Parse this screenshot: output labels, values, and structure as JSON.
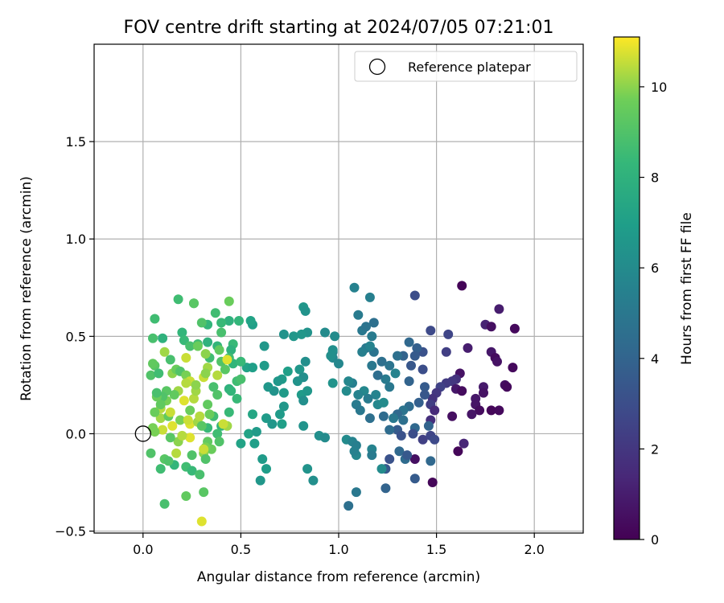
{
  "chart_data": {
    "type": "scatter",
    "title": "FOV centre drift starting at 2024/07/05 07:21:01",
    "xlabel": "Angular distance from reference (arcmin)",
    "ylabel": "Rotation from reference (arcmin)",
    "xlim": [
      -0.25,
      2.25
    ],
    "ylim": [
      -0.51,
      2.0
    ],
    "xticks": [
      {
        "value": 0.0,
        "label": "0.0"
      },
      {
        "value": 0.5,
        "label": "0.5"
      },
      {
        "value": 1.0,
        "label": "1.0"
      },
      {
        "value": 1.5,
        "label": "1.5"
      },
      {
        "value": 2.0,
        "label": "2.0"
      }
    ],
    "yticks": [
      {
        "value": -0.5,
        "label": "−0.5"
      },
      {
        "value": 0.0,
        "label": "0.0"
      },
      {
        "value": 0.5,
        "label": "0.5"
      },
      {
        "value": 1.0,
        "label": "1.0"
      },
      {
        "value": 1.5,
        "label": "1.5"
      }
    ],
    "grid": true,
    "legend": {
      "position": "top-right",
      "entries": [
        {
          "label": "Reference platepar",
          "marker": "open-circle"
        }
      ]
    },
    "reference_point": {
      "x": 0.0,
      "y": 0.0
    },
    "colorbar": {
      "label": "Hours from first FF file",
      "colormap": "viridis",
      "range": [
        0,
        11.1
      ],
      "ticks": [
        {
          "value": 0,
          "label": "0"
        },
        {
          "value": 2,
          "label": "2"
        },
        {
          "value": 4,
          "label": "4"
        },
        {
          "value": 6,
          "label": "6"
        },
        {
          "value": 8,
          "label": "8"
        },
        {
          "value": 10,
          "label": "10"
        }
      ]
    },
    "points": [
      [
        1.63,
        0.76,
        0.1
      ],
      [
        1.82,
        0.64,
        1.0
      ],
      [
        1.9,
        0.54,
        0.3
      ],
      [
        1.75,
        0.56,
        1.2
      ],
      [
        1.78,
        0.55,
        0.5
      ],
      [
        1.78,
        0.42,
        0.8
      ],
      [
        1.8,
        0.39,
        0.4
      ],
      [
        1.81,
        0.37,
        0.6
      ],
      [
        1.66,
        0.44,
        1.0
      ],
      [
        1.89,
        0.34,
        0.3
      ],
      [
        1.62,
        0.31,
        0.6
      ],
      [
        1.6,
        0.28,
        1.8
      ],
      [
        1.58,
        0.27,
        2.0
      ],
      [
        1.55,
        0.26,
        2.2
      ],
      [
        1.52,
        0.24,
        2.5
      ],
      [
        1.5,
        0.21,
        2.0
      ],
      [
        1.48,
        0.18,
        1.8
      ],
      [
        1.47,
        0.15,
        2.3
      ],
      [
        1.49,
        0.12,
        1.5
      ],
      [
        1.47,
        0.07,
        1.7
      ],
      [
        1.85,
        0.25,
        0.5
      ],
      [
        1.86,
        0.24,
        0.3
      ],
      [
        1.74,
        0.24,
        0.9
      ],
      [
        1.74,
        0.21,
        0.6
      ],
      [
        1.7,
        0.18,
        0.8
      ],
      [
        1.7,
        0.15,
        0.7
      ],
      [
        1.72,
        0.12,
        0.4
      ],
      [
        1.78,
        0.12,
        0.2
      ],
      [
        1.82,
        0.12,
        0.3
      ],
      [
        1.68,
        0.1,
        0.7
      ],
      [
        1.58,
        0.09,
        0.5
      ],
      [
        1.6,
        0.23,
        0.8
      ],
      [
        1.63,
        0.22,
        0.4
      ],
      [
        1.61,
        -0.09,
        0.2
      ],
      [
        1.64,
        -0.05,
        1.3
      ],
      [
        1.48,
        -0.25,
        0.2
      ],
      [
        1.39,
        -0.13,
        0.5
      ],
      [
        1.47,
        0.53,
        2.8
      ],
      [
        1.56,
        0.51,
        2.6
      ],
      [
        1.55,
        0.42,
        2.3
      ],
      [
        1.39,
        0.71,
        3.0
      ],
      [
        1.43,
        0.42,
        3.2
      ],
      [
        1.4,
        0.44,
        3.8
      ],
      [
        1.36,
        0.47,
        4.2
      ],
      [
        1.39,
        0.4,
        3.6
      ],
      [
        1.33,
        0.4,
        4.0
      ],
      [
        1.3,
        0.4,
        4.6
      ],
      [
        1.37,
        0.35,
        3.4
      ],
      [
        1.43,
        0.33,
        3.0
      ],
      [
        1.36,
        0.27,
        4.0
      ],
      [
        1.44,
        0.24,
        3.6
      ],
      [
        1.44,
        0.2,
        3.4
      ],
      [
        1.41,
        0.16,
        3.8
      ],
      [
        1.36,
        0.14,
        4.4
      ],
      [
        1.33,
        0.12,
        4.8
      ],
      [
        1.3,
        0.1,
        4.2
      ],
      [
        1.33,
        0.07,
        4.6
      ],
      [
        1.28,
        0.08,
        5.0
      ],
      [
        1.23,
        0.09,
        4.4
      ],
      [
        1.46,
        0.04,
        4.0
      ],
      [
        1.39,
        0.03,
        4.2
      ],
      [
        1.3,
        0.02,
        3.6
      ],
      [
        1.26,
        0.02,
        4.4
      ],
      [
        1.32,
        -0.01,
        3.2
      ],
      [
        1.38,
        0.0,
        3.0
      ],
      [
        1.43,
        -0.03,
        2.4
      ],
      [
        1.47,
        -0.01,
        2.6
      ],
      [
        1.49,
        -0.03,
        2.8
      ],
      [
        1.47,
        -0.14,
        4.2
      ],
      [
        1.39,
        -0.23,
        3.6
      ],
      [
        1.31,
        -0.09,
        4.2
      ],
      [
        1.34,
        -0.13,
        4.4
      ],
      [
        1.26,
        -0.13,
        3.2
      ],
      [
        1.24,
        -0.28,
        4.0
      ],
      [
        1.35,
        -0.11,
        3.5
      ],
      [
        1.24,
        -0.18,
        3.5
      ],
      [
        1.08,
        0.75,
        5.5
      ],
      [
        1.1,
        0.61,
        5.2
      ],
      [
        1.16,
        0.7,
        5.4
      ],
      [
        1.18,
        0.57,
        4.6
      ],
      [
        1.12,
        0.53,
        5.0
      ],
      [
        1.14,
        0.55,
        4.8
      ],
      [
        1.17,
        0.5,
        5.2
      ],
      [
        1.14,
        0.44,
        5.0
      ],
      [
        1.12,
        0.42,
        5.4
      ],
      [
        1.18,
        0.42,
        4.8
      ],
      [
        1.16,
        0.45,
        5.6
      ],
      [
        1.17,
        0.35,
        5.0
      ],
      [
        1.22,
        0.37,
        4.6
      ],
      [
        1.26,
        0.35,
        4.8
      ],
      [
        1.24,
        0.28,
        5.2
      ],
      [
        1.26,
        0.24,
        5.0
      ],
      [
        1.29,
        0.31,
        5.6
      ],
      [
        1.2,
        0.3,
        4.5
      ],
      [
        1.19,
        0.2,
        5.6
      ],
      [
        1.13,
        0.22,
        5.8
      ],
      [
        1.1,
        0.2,
        5.6
      ],
      [
        1.07,
        0.26,
        5.4
      ],
      [
        1.05,
        0.27,
        5.8
      ],
      [
        1.15,
        0.18,
        5.2
      ],
      [
        1.09,
        0.15,
        5.2
      ],
      [
        1.11,
        0.12,
        5.0
      ],
      [
        1.2,
        0.15,
        5.8
      ],
      [
        1.23,
        0.16,
        6.0
      ],
      [
        1.16,
        0.08,
        4.6
      ],
      [
        1.04,
        -0.03,
        6.0
      ],
      [
        1.07,
        -0.04,
        5.6
      ],
      [
        1.09,
        -0.06,
        5.4
      ],
      [
        1.09,
        -0.11,
        5.8
      ],
      [
        1.08,
        -0.09,
        5.5
      ],
      [
        1.17,
        -0.08,
        5.6
      ],
      [
        1.17,
        -0.11,
        5.2
      ],
      [
        1.22,
        -0.18,
        6.0
      ],
      [
        1.09,
        -0.3,
        5.0
      ],
      [
        1.05,
        -0.37,
        4.6
      ],
      [
        1.04,
        0.22,
        6.0
      ],
      [
        1.0,
        0.36,
        5.8
      ],
      [
        0.97,
        0.42,
        5.6
      ],
      [
        0.98,
        0.5,
        6.0
      ],
      [
        0.93,
        0.52,
        6.0
      ],
      [
        0.97,
        0.43,
        6.2
      ],
      [
        0.97,
        0.39,
        5.8
      ],
      [
        0.96,
        0.4,
        6.2
      ],
      [
        0.97,
        0.26,
        6.4
      ],
      [
        0.9,
        -0.01,
        6.2
      ],
      [
        0.93,
        -0.02,
        6.0
      ],
      [
        0.84,
        -0.18,
        6.4
      ],
      [
        0.87,
        -0.24,
        6.2
      ],
      [
        0.82,
        0.65,
        6.6
      ],
      [
        0.83,
        0.63,
        6.4
      ],
      [
        0.84,
        0.52,
        6.4
      ],
      [
        0.81,
        0.51,
        6.6
      ],
      [
        0.77,
        0.5,
        6.6
      ],
      [
        0.72,
        0.51,
        6.4
      ],
      [
        0.83,
        0.37,
        6.2
      ],
      [
        0.8,
        0.33,
        6.6
      ],
      [
        0.82,
        0.29,
        6.2
      ],
      [
        0.79,
        0.27,
        6.4
      ],
      [
        0.81,
        0.2,
        6.8
      ],
      [
        0.82,
        0.17,
        6.2
      ],
      [
        0.84,
        0.22,
        6.6
      ],
      [
        0.74,
        0.32,
        7.0
      ],
      [
        0.71,
        0.28,
        6.8
      ],
      [
        0.69,
        0.27,
        6.6
      ],
      [
        0.72,
        0.21,
        6.8
      ],
      [
        0.67,
        0.22,
        6.4
      ],
      [
        0.64,
        0.24,
        6.6
      ],
      [
        0.72,
        0.14,
        6.6
      ],
      [
        0.7,
        0.1,
        6.8
      ],
      [
        0.71,
        0.05,
        7.0
      ],
      [
        0.63,
        0.08,
        6.8
      ],
      [
        0.66,
        0.05,
        6.6
      ],
      [
        0.82,
        0.04,
        6.4
      ],
      [
        0.62,
        0.35,
        6.8
      ],
      [
        0.62,
        0.45,
        6.6
      ],
      [
        0.56,
        0.56,
        7.0
      ],
      [
        0.55,
        0.58,
        7.2
      ],
      [
        0.53,
        0.34,
        7.2
      ],
      [
        0.56,
        0.34,
        7.0
      ],
      [
        0.56,
        0.1,
        7.4
      ],
      [
        0.54,
        0.0,
        7.2
      ],
      [
        0.58,
        0.01,
        6.8
      ],
      [
        0.57,
        -0.05,
        7.0
      ],
      [
        0.5,
        -0.05,
        7.2
      ],
      [
        0.61,
        -0.13,
        6.8
      ],
      [
        0.6,
        -0.24,
        6.6
      ],
      [
        0.63,
        -0.18,
        6.9
      ],
      [
        0.49,
        0.58,
        8.2
      ],
      [
        0.44,
        0.58,
        8.0
      ],
      [
        0.46,
        0.46,
        8.4
      ],
      [
        0.44,
        0.68,
        9.6
      ],
      [
        0.37,
        0.62,
        8.6
      ],
      [
        0.4,
        0.57,
        8.4
      ],
      [
        0.33,
        0.56,
        8.2
      ],
      [
        0.3,
        0.57,
        9.0
      ],
      [
        0.26,
        0.67,
        8.8
      ],
      [
        0.26,
        0.67,
        9.2
      ],
      [
        0.18,
        0.69,
        8.6
      ],
      [
        0.06,
        0.59,
        8.6
      ],
      [
        0.1,
        0.49,
        8.0
      ],
      [
        0.05,
        0.49,
        8.8
      ],
      [
        0.2,
        0.52,
        8.2
      ],
      [
        0.21,
        0.48,
        8.4
      ],
      [
        0.28,
        0.46,
        8.6
      ],
      [
        0.24,
        0.45,
        8.8
      ],
      [
        0.33,
        0.47,
        8.0
      ],
      [
        0.4,
        0.52,
        8.8
      ],
      [
        0.38,
        0.45,
        8.2
      ],
      [
        0.34,
        0.39,
        8.6
      ],
      [
        0.45,
        0.43,
        8.0
      ],
      [
        0.44,
        0.39,
        8.6
      ],
      [
        0.4,
        0.37,
        9.0
      ],
      [
        0.42,
        0.33,
        9.2
      ],
      [
        0.46,
        0.36,
        8.2
      ],
      [
        0.5,
        0.37,
        8.4
      ],
      [
        0.48,
        0.27,
        8.6
      ],
      [
        0.5,
        0.28,
        8.8
      ],
      [
        0.44,
        0.23,
        8.0
      ],
      [
        0.45,
        0.22,
        8.2
      ],
      [
        0.48,
        0.18,
        8.4
      ],
      [
        0.36,
        0.24,
        8.8
      ],
      [
        0.38,
        0.2,
        9.0
      ],
      [
        0.33,
        0.15,
        9.4
      ],
      [
        0.36,
        0.09,
        8.6
      ],
      [
        0.34,
        0.1,
        9.6
      ],
      [
        0.33,
        0.03,
        8.4
      ],
      [
        0.4,
        0.04,
        8.2
      ],
      [
        0.38,
        0.0,
        8.6
      ],
      [
        0.43,
        0.04,
        10.2
      ],
      [
        0.41,
        0.05,
        10.6
      ],
      [
        0.44,
        0.11,
        8.4
      ],
      [
        0.39,
        -0.04,
        9.0
      ],
      [
        0.33,
        -0.04,
        9.4
      ],
      [
        0.35,
        -0.08,
        9.6
      ],
      [
        0.32,
        -0.07,
        9.8
      ],
      [
        0.31,
        -0.1,
        10.0
      ],
      [
        0.32,
        -0.13,
        9.0
      ],
      [
        0.25,
        -0.11,
        9.0
      ],
      [
        0.22,
        -0.17,
        8.6
      ],
      [
        0.25,
        -0.19,
        8.4
      ],
      [
        0.29,
        -0.21,
        8.8
      ],
      [
        0.31,
        -0.3,
        9.2
      ],
      [
        0.22,
        -0.32,
        9.4
      ],
      [
        0.3,
        -0.45,
        10.8
      ],
      [
        0.11,
        -0.36,
        8.8
      ],
      [
        0.09,
        -0.18,
        8.6
      ],
      [
        0.11,
        -0.13,
        9.2
      ],
      [
        0.16,
        -0.16,
        8.2
      ],
      [
        0.13,
        -0.14,
        9.0
      ],
      [
        0.17,
        -0.1,
        10.4
      ],
      [
        0.18,
        -0.04,
        10.0
      ],
      [
        0.24,
        -0.02,
        10.8
      ],
      [
        0.2,
        -0.01,
        10.4
      ],
      [
        0.14,
        -0.02,
        9.2
      ],
      [
        0.15,
        0.04,
        10.8
      ],
      [
        0.1,
        0.02,
        10.6
      ],
      [
        0.09,
        0.08,
        10.2
      ],
      [
        0.13,
        0.09,
        9.4
      ],
      [
        0.14,
        0.11,
        10.6
      ],
      [
        0.12,
        0.17,
        9.8
      ],
      [
        0.09,
        0.13,
        10.4
      ],
      [
        0.06,
        0.11,
        9.6
      ],
      [
        0.05,
        0.03,
        9.8
      ],
      [
        0.04,
        -0.1,
        9.0
      ],
      [
        0.06,
        0.01,
        9.8
      ],
      [
        0.04,
        0.3,
        9.0
      ],
      [
        0.06,
        0.35,
        9.2
      ],
      [
        0.05,
        0.36,
        9.4
      ],
      [
        0.08,
        0.31,
        8.6
      ],
      [
        0.11,
        0.42,
        10.2
      ],
      [
        0.14,
        0.38,
        8.8
      ],
      [
        0.15,
        0.31,
        10.0
      ],
      [
        0.17,
        0.33,
        9.6
      ],
      [
        0.19,
        0.32,
        9.0
      ],
      [
        0.22,
        0.39,
        10.6
      ],
      [
        0.22,
        0.3,
        9.8
      ],
      [
        0.24,
        0.27,
        10.6
      ],
      [
        0.22,
        0.26,
        10.4
      ],
      [
        0.18,
        0.22,
        10.2
      ],
      [
        0.16,
        0.2,
        9.4
      ],
      [
        0.12,
        0.22,
        9.2
      ],
      [
        0.1,
        0.19,
        9.0
      ],
      [
        0.09,
        0.15,
        9.4
      ],
      [
        0.07,
        0.19,
        9.6
      ],
      [
        0.21,
        0.17,
        10.8
      ],
      [
        0.24,
        0.12,
        9.6
      ],
      [
        0.26,
        0.18,
        10.4
      ],
      [
        0.27,
        0.22,
        10.2
      ],
      [
        0.24,
        0.05,
        10.8
      ],
      [
        0.28,
        0.06,
        10.2
      ],
      [
        0.29,
        0.09,
        10.4
      ],
      [
        0.19,
        0.07,
        9.8
      ],
      [
        0.23,
        0.07,
        10.6
      ],
      [
        0.28,
        0.45,
        9.6
      ],
      [
        0.32,
        0.41,
        10.0
      ],
      [
        0.33,
        0.34,
        10.2
      ],
      [
        0.31,
        0.29,
        10.6
      ],
      [
        0.32,
        0.31,
        10.0
      ],
      [
        0.38,
        0.3,
        10.4
      ],
      [
        0.39,
        0.43,
        9.4
      ],
      [
        0.43,
        0.38,
        10.8
      ],
      [
        0.3,
        0.04,
        9.2
      ],
      [
        0.31,
        -0.08,
        10.6
      ],
      [
        0.07,
        0.21,
        8.8
      ],
      [
        0.27,
        0.25,
        10.0
      ]
    ]
  }
}
